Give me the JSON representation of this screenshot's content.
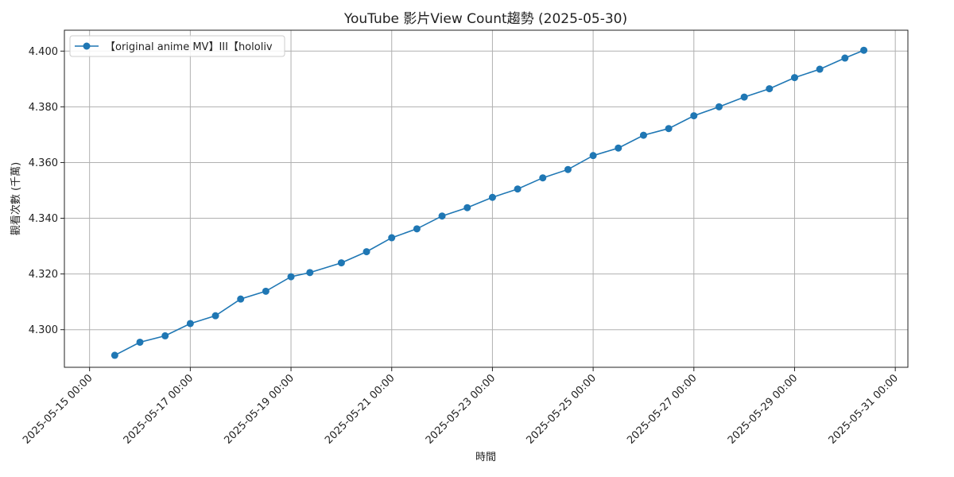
{
  "chart_data": {
    "type": "line",
    "title": "YouTube 影片View Count趨勢 (2025-05-30)",
    "xlabel": "時間",
    "ylabel": "觀看次數 (千萬)",
    "xlim": [
      "2025-05-14 12:00",
      "2025-05-31 06:00"
    ],
    "ylim": [
      4.2865,
      4.4075
    ],
    "grid": true,
    "legend_position": "top-left",
    "x_ticks": [
      "2025-05-15 00:00",
      "2025-05-17 00:00",
      "2025-05-19 00:00",
      "2025-05-21 00:00",
      "2025-05-23 00:00",
      "2025-05-25 00:00",
      "2025-05-27 00:00",
      "2025-05-29 00:00",
      "2025-05-31 00:00"
    ],
    "y_ticks": [
      4.3,
      4.32,
      4.34,
      4.36,
      4.38,
      4.4
    ],
    "y_tick_labels": [
      "4.300",
      "4.320",
      "4.340",
      "4.360",
      "4.380",
      "4.400"
    ],
    "series": [
      {
        "name": "【original anime MV】III【hololiv",
        "color": "#1f77b4",
        "marker": "circle",
        "points": [
          {
            "x": "2025-05-15 12:00",
            "y": 4.2908
          },
          {
            "x": "2025-05-16 00:00",
            "y": 4.2955
          },
          {
            "x": "2025-05-16 12:00",
            "y": 4.2978
          },
          {
            "x": "2025-05-17 00:00",
            "y": 4.3022
          },
          {
            "x": "2025-05-17 12:00",
            "y": 4.305
          },
          {
            "x": "2025-05-18 00:00",
            "y": 4.311
          },
          {
            "x": "2025-05-18 12:00",
            "y": 4.3138
          },
          {
            "x": "2025-05-19 00:00",
            "y": 4.319
          },
          {
            "x": "2025-05-19 09:00",
            "y": 4.3205
          },
          {
            "x": "2025-05-20 00:00",
            "y": 4.324
          },
          {
            "x": "2025-05-20 12:00",
            "y": 4.328
          },
          {
            "x": "2025-05-21 00:00",
            "y": 4.333
          },
          {
            "x": "2025-05-21 12:00",
            "y": 4.3362
          },
          {
            "x": "2025-05-22 00:00",
            "y": 4.3408
          },
          {
            "x": "2025-05-22 12:00",
            "y": 4.3438
          },
          {
            "x": "2025-05-23 00:00",
            "y": 4.3475
          },
          {
            "x": "2025-05-23 12:00",
            "y": 4.3505
          },
          {
            "x": "2025-05-24 00:00",
            "y": 4.3545
          },
          {
            "x": "2025-05-24 12:00",
            "y": 4.3575
          },
          {
            "x": "2025-05-25 00:00",
            "y": 4.3625
          },
          {
            "x": "2025-05-25 12:00",
            "y": 4.3652
          },
          {
            "x": "2025-05-26 00:00",
            "y": 4.3698
          },
          {
            "x": "2025-05-26 12:00",
            "y": 4.3722
          },
          {
            "x": "2025-05-27 00:00",
            "y": 4.3768
          },
          {
            "x": "2025-05-27 12:00",
            "y": 4.38
          },
          {
            "x": "2025-05-28 00:00",
            "y": 4.3835
          },
          {
            "x": "2025-05-28 12:00",
            "y": 4.3865
          },
          {
            "x": "2025-05-29 00:00",
            "y": 4.3905
          },
          {
            "x": "2025-05-29 12:00",
            "y": 4.3935
          },
          {
            "x": "2025-05-30 00:00",
            "y": 4.3975
          },
          {
            "x": "2025-05-30 09:00",
            "y": 4.4003
          }
        ]
      }
    ]
  }
}
